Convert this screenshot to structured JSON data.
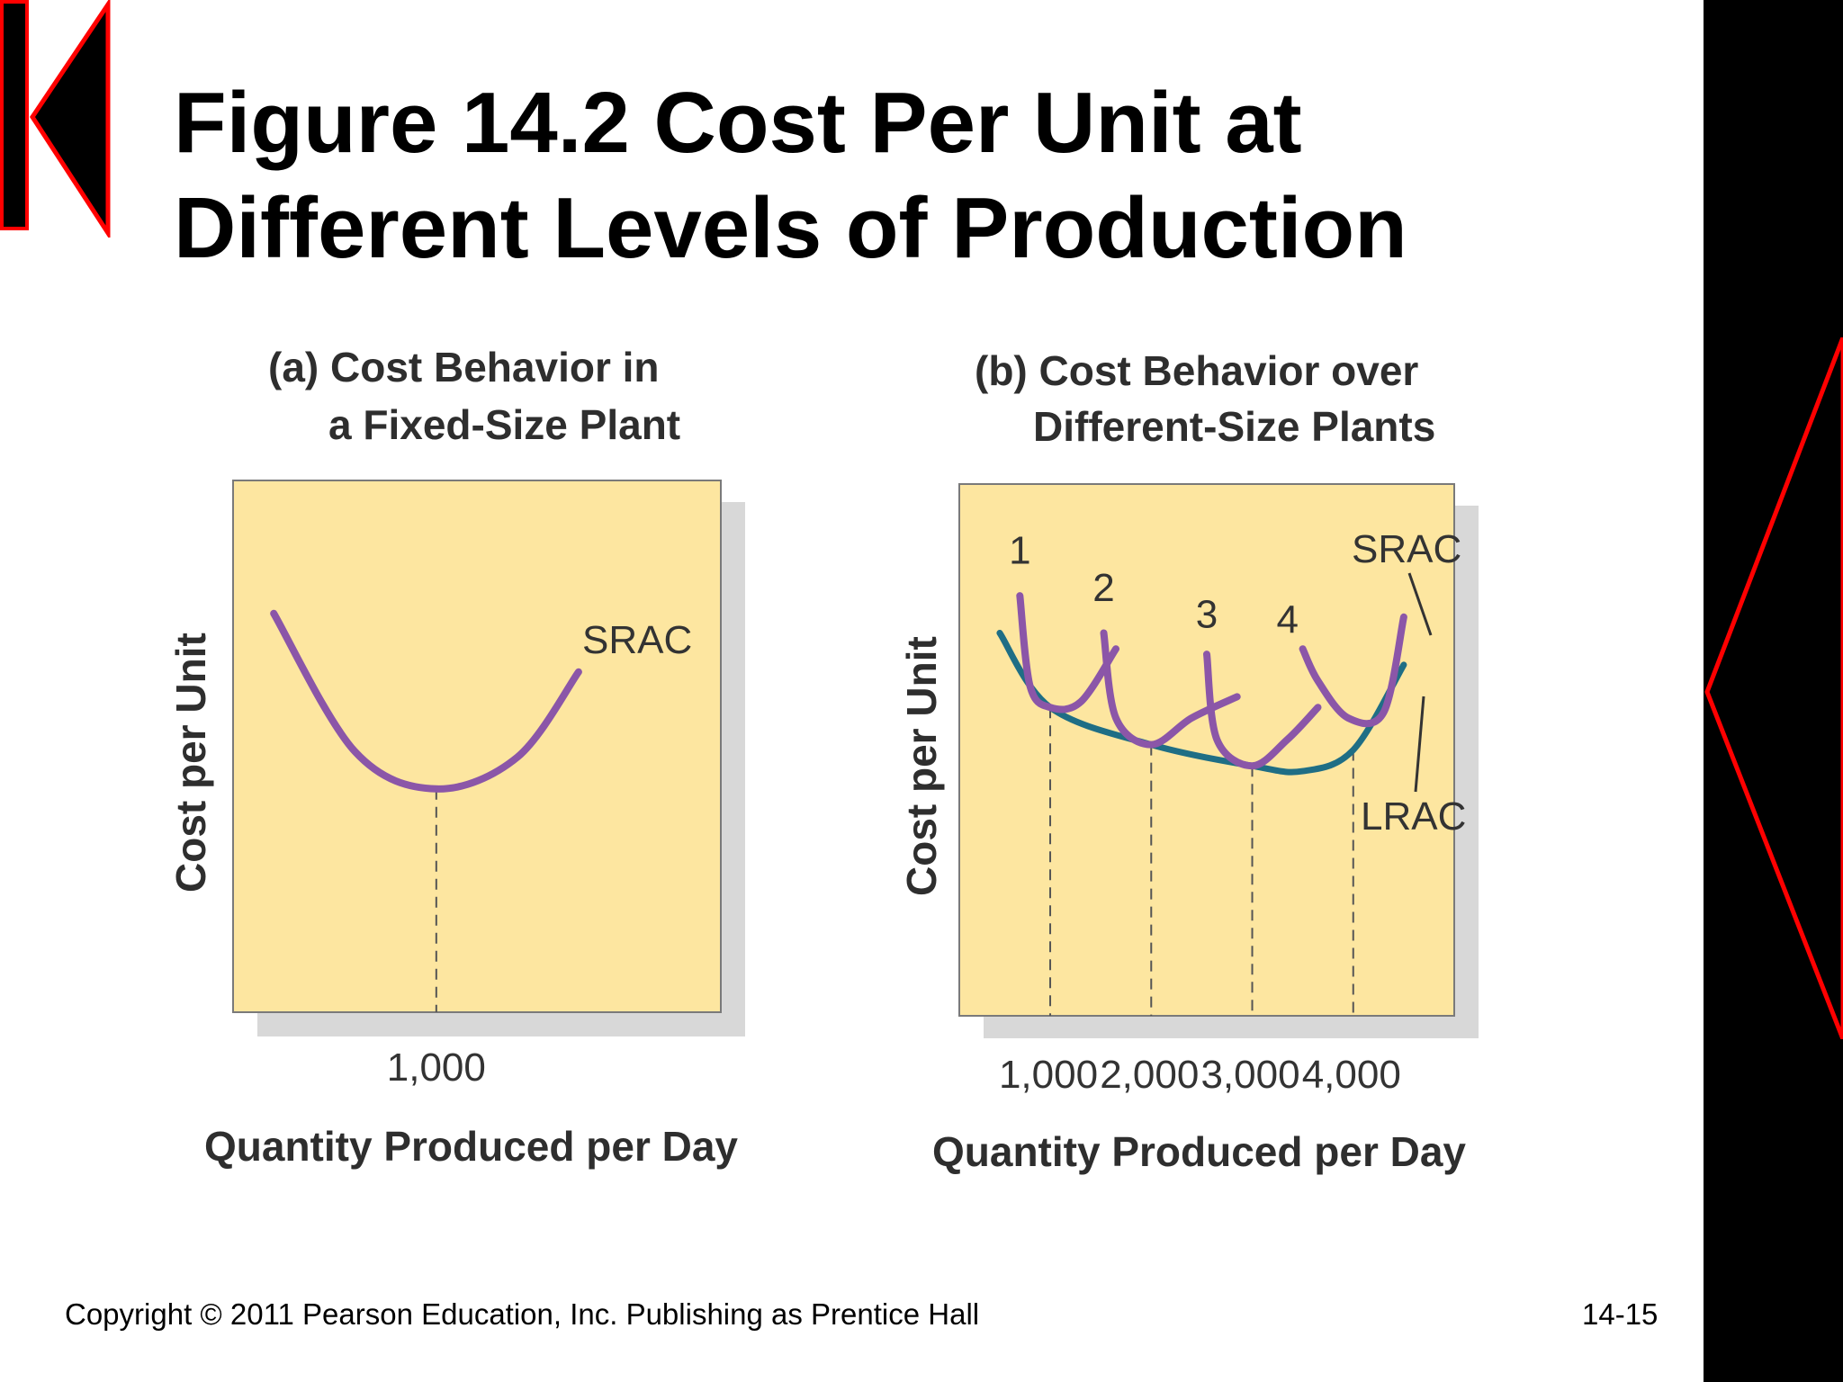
{
  "slide": {
    "title_lines": [
      "Figure 14.2 Cost Per Unit at",
      "Different Levels of Production"
    ],
    "footer_copyright": "Copyright © 2011 Pearson Education, Inc.  Publishing as Prentice Hall",
    "page_number": "14-15",
    "nav": {
      "back": "back-arrow-icon",
      "next": "next-arrow-icon"
    },
    "colors": {
      "accent": "#ff0000",
      "bar": "#000000",
      "plot_bg": "#fde6a0",
      "srac": "#8b56a8",
      "lrac": "#1f6e85",
      "shadow": "#d8d8d8"
    }
  },
  "chart_data": [
    {
      "type": "line",
      "title_lines": [
        "(a) Cost Behavior in",
        "a Fixed-Size Plant"
      ],
      "xlabel": "Quantity Produced per Day",
      "ylabel": "Cost per Unit",
      "xticks": [
        {
          "value": 1000,
          "label": "1,000"
        }
      ],
      "xlim": [
        0,
        2400
      ],
      "ylim": [
        0,
        100
      ],
      "series": [
        {
          "name": "SRAC",
          "x": [
            200,
            600,
            1000,
            1400,
            1700
          ],
          "y": [
            75,
            49,
            42,
            48,
            64
          ]
        }
      ],
      "guides": [
        1000
      ]
    },
    {
      "type": "line",
      "title_lines": [
        "(b) Cost Behavior over",
        "Different-Size Plants"
      ],
      "xlabel": "Quantity Produced per Day",
      "ylabel": "Cost per Unit",
      "xticks": [
        {
          "value": 1000,
          "label": "1,000"
        },
        {
          "value": 2000,
          "label": "2,000"
        },
        {
          "value": 3000,
          "label": "3,000"
        },
        {
          "value": 4000,
          "label": "4,000"
        }
      ],
      "xlim": [
        100,
        5000
      ],
      "ylim": [
        0,
        100
      ],
      "series": [
        {
          "name": "LRAC",
          "x": [
            500,
            1000,
            2000,
            3000,
            3500,
            4000,
            4500
          ],
          "y": [
            72,
            58,
            51,
            47,
            46,
            50,
            66
          ]
        },
        {
          "name": "1",
          "x": [
            700,
            800,
            1000,
            1300,
            1650
          ],
          "y": [
            79,
            62,
            58,
            59,
            69
          ]
        },
        {
          "name": "2",
          "x": [
            1530,
            1650,
            2000,
            2400,
            2850
          ],
          "y": [
            72,
            56,
            51,
            56,
            60
          ]
        },
        {
          "name": "3",
          "x": [
            2550,
            2650,
            3000,
            3350,
            3650
          ],
          "y": [
            68,
            52,
            47,
            52,
            58
          ]
        },
        {
          "name": "4",
          "x": [
            3500,
            3650,
            3950,
            4300,
            4500
          ],
          "y": [
            69,
            63,
            56,
            57,
            75
          ]
        }
      ],
      "curve_labels": {
        "srac": "SRAC",
        "lrac": "LRAC",
        "plants": [
          {
            "text": "1",
            "x": 700,
            "y": 85
          },
          {
            "text": "2",
            "x": 1530,
            "y": 78
          },
          {
            "text": "3",
            "x": 2550,
            "y": 73
          },
          {
            "text": "4",
            "x": 3350,
            "y": 72
          }
        ]
      },
      "guides": [
        1000,
        2000,
        3000,
        4000
      ]
    }
  ]
}
